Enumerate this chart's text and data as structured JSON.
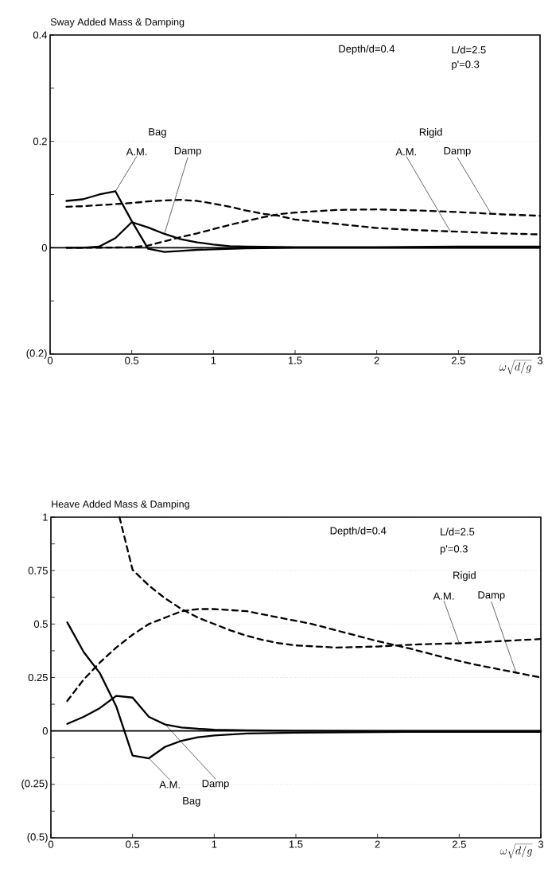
{
  "chart_data": [
    {
      "type": "line",
      "title": "Sway Added Mass & Damping",
      "xlabel": "\\omega\\sqrt{d/g}",
      "xlim": [
        0,
        3
      ],
      "ylim": [
        -0.2,
        0.4
      ],
      "xticks": [
        0,
        0.5,
        1,
        1.5,
        2,
        2.5,
        3
      ],
      "yticks": [
        {
          "value": -0.2,
          "label": "(0.2)"
        },
        {
          "value": -0.1,
          "label": null
        },
        0,
        {
          "value": 0.1,
          "label": null
        },
        0.2,
        {
          "value": 0.3,
          "label": null
        },
        0.4
      ],
      "grid": "y",
      "ref_lines": [
        {
          "axis": "y",
          "value": 0,
          "line_style": "solid",
          "color": "#000000"
        }
      ],
      "series": [
        {
          "color": "#000000",
          "line_style": "solid",
          "x": [
            0.1,
            0.2,
            0.3,
            0.4,
            0.5,
            0.6,
            0.7,
            0.8,
            0.9,
            1.0,
            1.2,
            1.5,
            2.0,
            2.5,
            3.0
          ],
          "values": [
            0.088,
            0.091,
            0.1,
            0.106,
            0.05,
            -0.002,
            -0.008,
            -0.006,
            -0.004,
            -0.003,
            -0.001,
            0,
            0,
            0,
            0
          ]
        },
        {
          "color": "#000000",
          "line_style": "solid",
          "x": [
            0.1,
            0.2,
            0.3,
            0.4,
            0.5,
            0.6,
            0.7,
            0.8,
            0.9,
            1.0,
            1.1,
            1.2,
            1.5,
            2.0,
            2.5,
            3.0
          ],
          "values": [
            0,
            0,
            0.002,
            0.018,
            0.048,
            0.038,
            0.026,
            0.016,
            0.01,
            0.006,
            0.003,
            0.002,
            0.001,
            0.001,
            0.002,
            0.002
          ]
        },
        {
          "color": "#000000",
          "line_style": "dashed",
          "x": [
            0.1,
            0.2,
            0.3,
            0.4,
            0.5,
            0.6,
            0.7,
            0.8,
            0.9,
            1.0,
            1.1,
            1.2,
            1.3,
            1.4,
            1.5,
            1.75,
            2.0,
            2.25,
            2.5,
            2.75,
            3.0
          ],
          "values": [
            0.077,
            0.078,
            0.08,
            0.082,
            0.084,
            0.087,
            0.089,
            0.09,
            0.088,
            0.083,
            0.077,
            0.07,
            0.064,
            0.06,
            0.053,
            0.045,
            0.037,
            0.033,
            0.03,
            0.027,
            0.025
          ]
        },
        {
          "color": "#000000",
          "line_style": "dashed",
          "x": [
            0.1,
            0.3,
            0.5,
            0.6,
            0.7,
            0.8,
            0.9,
            1.0,
            1.1,
            1.2,
            1.3,
            1.4,
            1.5,
            1.75,
            2.0,
            2.25,
            2.5,
            2.75,
            3.0
          ],
          "values": [
            0,
            0,
            0.001,
            0.004,
            0.012,
            0.02,
            0.027,
            0.035,
            0.043,
            0.05,
            0.057,
            0.063,
            0.066,
            0.071,
            0.072,
            0.07,
            0.067,
            0.063,
            0.06
          ]
        }
      ],
      "annotations": [
        "Depth/d=0.4",
        "L/d=2.5",
        "p'=0.3",
        "Bag",
        {
          "text": "A.M.",
          "x": 0.4,
          "y": 0.106
        },
        {
          "text": "Damp",
          "x": 0.7,
          "y": 0.026
        },
        "Rigid",
        {
          "text": "A.M.",
          "x": 2.45,
          "y": 0.031
        },
        {
          "text": "Damp",
          "x": 2.7,
          "y": 0.064
        }
      ]
    },
    {
      "type": "line",
      "title": "Heave Added Mass & Damping",
      "xlabel": "\\omega\\sqrt{d/g}",
      "xlim": [
        0,
        3
      ],
      "ylim": [
        -0.5,
        1
      ],
      "xticks": [
        0,
        0.5,
        1,
        1.5,
        2,
        2.5,
        3
      ],
      "yticks": [
        {
          "value": -0.5,
          "label": "(0.5)"
        },
        {
          "value": -0.375,
          "label": null
        },
        {
          "value": -0.25,
          "label": "(0.25)"
        },
        {
          "value": -0.125,
          "label": null
        },
        0,
        {
          "value": 0.125,
          "label": null
        },
        0.25,
        {
          "value": 0.375,
          "label": null
        },
        0.5,
        {
          "value": 0.625,
          "label": null
        },
        0.75,
        {
          "value": 0.875,
          "label": null
        },
        1
      ],
      "grid": "y",
      "ref_lines": [
        {
          "axis": "y",
          "value": 0,
          "line_style": "solid",
          "color": "#000000"
        }
      ],
      "series": [
        {
          "color": "#000000",
          "line_style": "solid",
          "x": [
            0.1,
            0.2,
            0.3,
            0.4,
            0.45,
            0.5,
            0.6,
            0.7,
            0.8,
            0.9,
            1.0,
            1.2,
            1.5,
            2.0,
            3.0
          ],
          "values": [
            0.508,
            0.37,
            0.27,
            0.115,
            0,
            -0.115,
            -0.128,
            -0.074,
            -0.046,
            -0.03,
            -0.021,
            -0.012,
            -0.008,
            -0.005,
            -0.004
          ]
        },
        {
          "color": "#000000",
          "line_style": "solid",
          "x": [
            0.1,
            0.2,
            0.3,
            0.4,
            0.5,
            0.6,
            0.7,
            0.8,
            0.9,
            1.0,
            1.2,
            1.5,
            2.0,
            3.0
          ],
          "values": [
            0.033,
            0.066,
            0.107,
            0.164,
            0.156,
            0.066,
            0.03,
            0.016,
            0.01,
            0.006,
            0.003,
            0.001,
            0,
            0
          ]
        },
        {
          "color": "#000000",
          "line_style": "dashed",
          "x": [
            0.42,
            0.5,
            0.6,
            0.7,
            0.8,
            0.9,
            1.0,
            1.1,
            1.2,
            1.3,
            1.4,
            1.5,
            1.75,
            2.0,
            2.25,
            2.5,
            2.75,
            3.0
          ],
          "values": [
            1.0,
            0.754,
            0.68,
            0.62,
            0.57,
            0.53,
            0.5,
            0.47,
            0.445,
            0.425,
            0.41,
            0.4,
            0.39,
            0.395,
            0.405,
            0.41,
            0.42,
            0.43
          ]
        },
        {
          "color": "#000000",
          "line_style": "dashed",
          "x": [
            0.1,
            0.2,
            0.3,
            0.4,
            0.5,
            0.6,
            0.7,
            0.8,
            0.9,
            1.0,
            1.2,
            1.4,
            1.6,
            1.8,
            2.0,
            2.2,
            2.4,
            2.6,
            2.8,
            3.0
          ],
          "values": [
            0.14,
            0.24,
            0.32,
            0.39,
            0.45,
            0.5,
            0.53,
            0.56,
            0.57,
            0.57,
            0.56,
            0.53,
            0.5,
            0.46,
            0.42,
            0.385,
            0.345,
            0.31,
            0.28,
            0.25
          ]
        }
      ],
      "annotations": [
        "Depth/d=0.4",
        "L/d=2.5",
        "p'=0.3",
        "Rigid",
        {
          "text": "A.M.",
          "x": 2.5,
          "y": 0.41
        },
        {
          "text": "Damp",
          "x": 2.85,
          "y": 0.27
        },
        {
          "text": "A.M.",
          "x": 0.6,
          "y": -0.128
        },
        {
          "text": "Damp",
          "x": 0.7,
          "y": 0.03
        },
        "Bag"
      ]
    }
  ]
}
